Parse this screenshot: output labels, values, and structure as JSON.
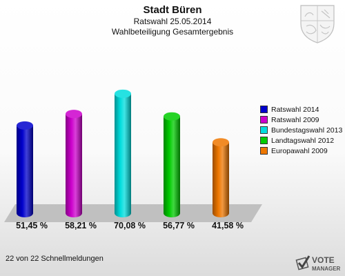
{
  "header": {
    "title": "Stadt Büren",
    "subtitle1": "Ratswahl 25.05.2014",
    "subtitle2": "Wahlbeteiligung Gesamtergebnis"
  },
  "chart_data": {
    "type": "bar",
    "title": "Stadt Büren",
    "subtitle": "Ratswahl 25.05.2014 / Wahlbeteiligung Gesamtergebnis",
    "categories": [
      "Ratswahl 2014",
      "Ratswahl 2009",
      "Bundestagswahl 2013",
      "Landtagswahl 2012",
      "Europawahl 2009"
    ],
    "values": [
      51.45,
      58.21,
      70.08,
      56.77,
      41.58
    ],
    "value_labels": [
      "51,45 %",
      "58,21 %",
      "70,08 %",
      "56,77 %",
      "41,58 %"
    ],
    "colors": [
      "#0000cc",
      "#cc00cc",
      "#00dddd",
      "#00cc00",
      "#ee7700"
    ],
    "ylim": [
      0,
      100
    ],
    "grid": false,
    "legend_position": "right"
  },
  "footer": {
    "text": "22 von 22 Schnellmeldungen"
  },
  "logo": {
    "text1": "VOTE",
    "text2": "MANAGER",
    "icon": "checkmark-ballot-icon"
  },
  "crest": {
    "icon": "coat-of-arms-icon"
  }
}
